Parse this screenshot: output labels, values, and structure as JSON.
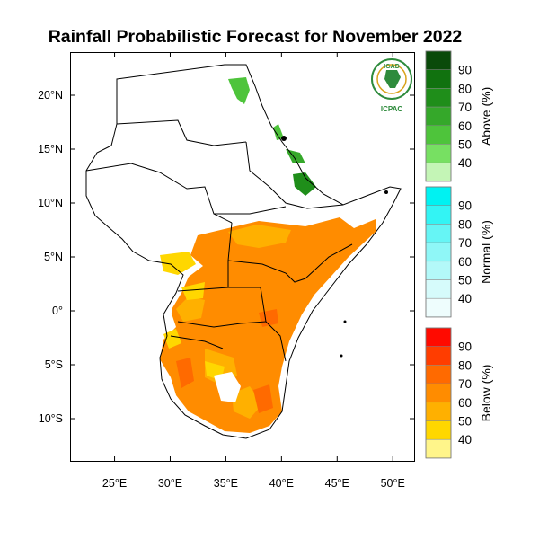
{
  "title": "Rainfall Probabilistic Forecast for November 2022",
  "logo": {
    "org_short": "IGAD",
    "centre_short": "ICPAC",
    "colors": {
      "green": "#2e8b3c",
      "gold": "#d9a21b"
    }
  },
  "map": {
    "type": "choropleth",
    "lon_range": [
      21,
      52
    ],
    "lat_range": [
      -14,
      24
    ],
    "x_ticks": [
      {
        "value": 25,
        "label": "25°E"
      },
      {
        "value": 30,
        "label": "30°E"
      },
      {
        "value": 35,
        "label": "35°E"
      },
      {
        "value": 40,
        "label": "40°E"
      },
      {
        "value": 45,
        "label": "45°E"
      },
      {
        "value": 50,
        "label": "50°E"
      }
    ],
    "y_ticks": [
      {
        "value": 20,
        "label": "20°N"
      },
      {
        "value": 15,
        "label": "15°N"
      },
      {
        "value": 10,
        "label": "10°N"
      },
      {
        "value": 5,
        "label": "5°N"
      },
      {
        "value": 0,
        "label": "0°"
      },
      {
        "value": -5,
        "label": "5°S"
      },
      {
        "value": -10,
        "label": "10°S"
      }
    ]
  },
  "colorbars": [
    {
      "title": "Above (%)",
      "levels": [
        "90",
        "80",
        "70",
        "60",
        "50",
        "40"
      ],
      "colors": [
        "#0a4a0a",
        "#11720f",
        "#1f8e1a",
        "#35a82a",
        "#4ec43b",
        "#77e062",
        "#c4f5b6"
      ]
    },
    {
      "title": "Normal (%)",
      "levels": [
        "90",
        "80",
        "70",
        "60",
        "50",
        "40"
      ],
      "colors": [
        "#00f2f2",
        "#33f4f4",
        "#66f5f5",
        "#8ff7f7",
        "#b3f9f9",
        "#d6fbfb",
        "#eefdfd"
      ]
    },
    {
      "title": "Below (%)",
      "levels": [
        "90",
        "80",
        "70",
        "60",
        "50",
        "40"
      ],
      "colors": [
        "#ff0a00",
        "#ff3d00",
        "#ff6a00",
        "#ff8c00",
        "#ffb000",
        "#ffd700",
        "#fff58a"
      ]
    }
  ]
}
